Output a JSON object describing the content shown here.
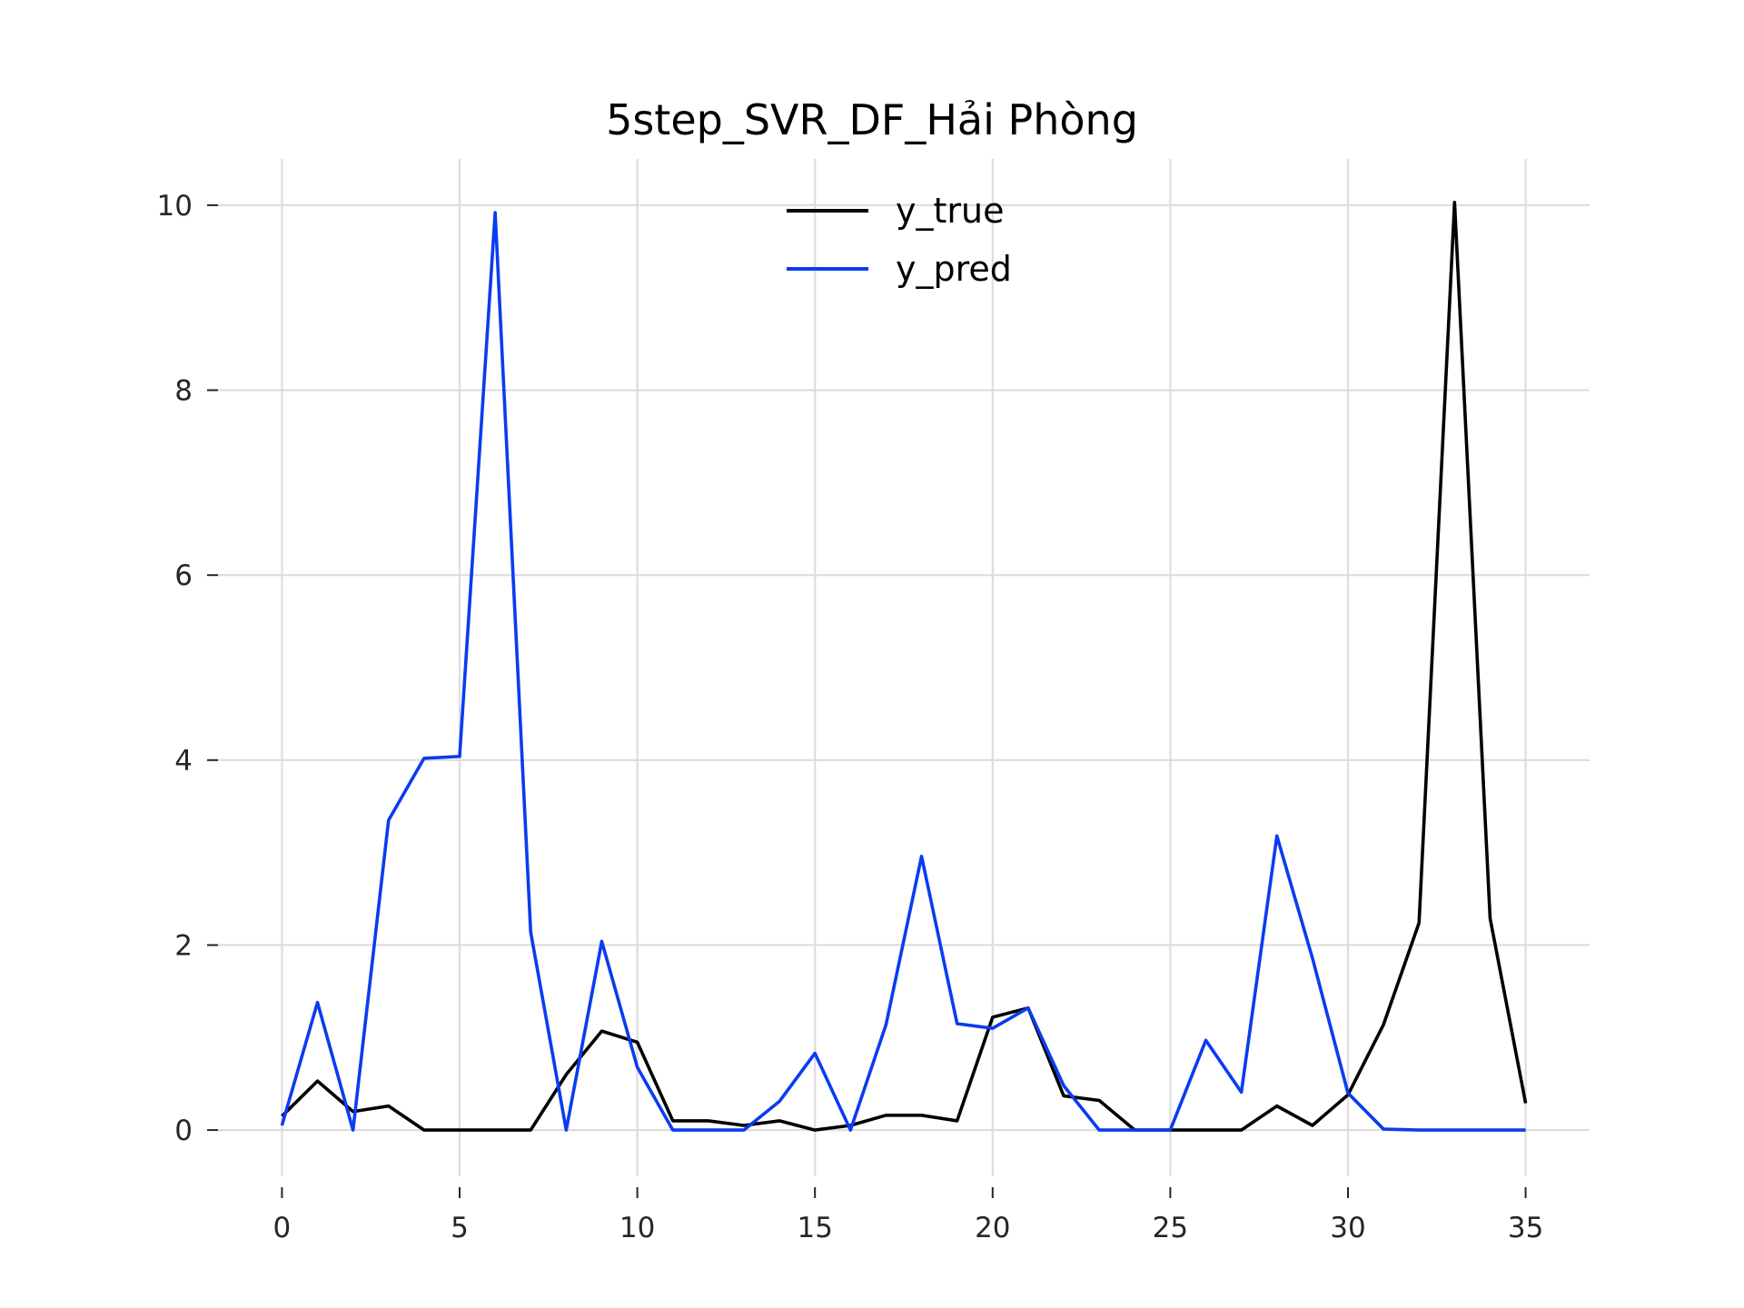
{
  "chart_data": {
    "type": "line",
    "title": "5step_SVR_DF_Hải Phòng",
    "xlabel": "",
    "ylabel": "",
    "xlim": [
      -1.8,
      36.8
    ],
    "ylim": [
      -0.5,
      10.5
    ],
    "xticks": [
      0,
      5,
      10,
      15,
      20,
      25,
      30,
      35
    ],
    "yticks": [
      0,
      2,
      4,
      6,
      8,
      10
    ],
    "xtick_labels": [
      "0",
      "5",
      "10",
      "15",
      "20",
      "25",
      "30",
      "35"
    ],
    "ytick_labels": [
      "0",
      "2",
      "4",
      "6",
      "8",
      "10"
    ],
    "grid": true,
    "legend_position": "top-center",
    "x": [
      0,
      1,
      2,
      3,
      4,
      5,
      6,
      7,
      8,
      9,
      10,
      11,
      12,
      13,
      14,
      15,
      16,
      17,
      18,
      19,
      20,
      21,
      22,
      23,
      24,
      25,
      26,
      27,
      28,
      29,
      30,
      31,
      32,
      33,
      34,
      35
    ],
    "series": [
      {
        "name": "y_true",
        "color": "#000000",
        "values": [
          0.15,
          0.53,
          0.2,
          0.26,
          0.0,
          0.0,
          0.0,
          0.0,
          0.6,
          1.07,
          0.95,
          0.1,
          0.1,
          0.05,
          0.1,
          0.0,
          0.05,
          0.16,
          0.16,
          0.1,
          1.22,
          1.32,
          0.37,
          0.32,
          0.0,
          0.0,
          0.0,
          0.0,
          0.26,
          0.05,
          0.38,
          1.14,
          2.24,
          10.03,
          2.29,
          0.29
        ]
      },
      {
        "name": "y_pred",
        "color": "#0a3cf0",
        "values": [
          0.05,
          1.38,
          0.0,
          3.35,
          4.02,
          4.04,
          9.92,
          2.14,
          0.0,
          2.04,
          0.68,
          0.0,
          0.0,
          0.0,
          0.31,
          0.83,
          0.0,
          1.14,
          2.96,
          1.15,
          1.1,
          1.32,
          0.48,
          0.0,
          0.0,
          0.0,
          0.97,
          0.41,
          3.18,
          1.86,
          0.4,
          0.01,
          0.0,
          0.0,
          0.0,
          0.0
        ]
      }
    ]
  }
}
